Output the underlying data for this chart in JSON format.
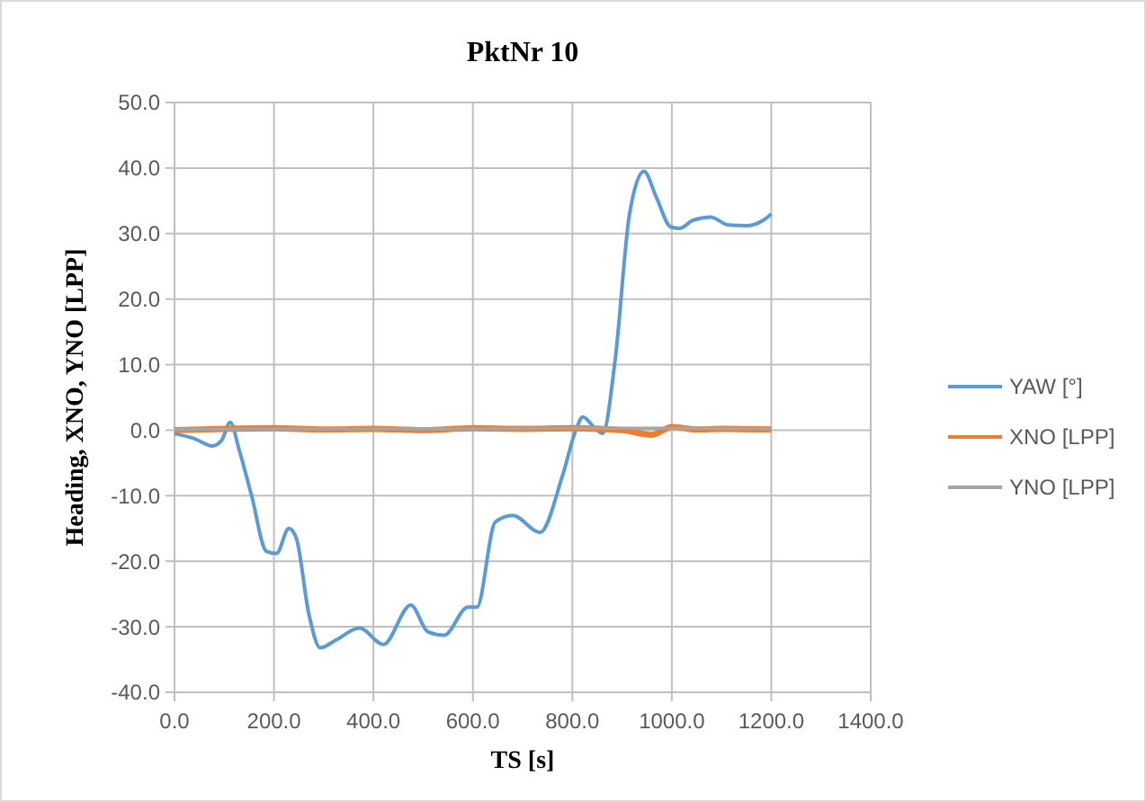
{
  "chart_data": {
    "type": "line",
    "title": "PktNr 10",
    "xlabel": "TS [s]",
    "ylabel": "Heading, XNO, YNO [LPP]",
    "xlim": [
      0,
      1400
    ],
    "xticks": [
      {
        "value": 0,
        "label": "0.0"
      },
      {
        "value": 200,
        "label": "200.0"
      },
      {
        "value": 400,
        "label": "400.0"
      },
      {
        "value": 600,
        "label": "600.0"
      },
      {
        "value": 800,
        "label": "800.0"
      },
      {
        "value": 1000,
        "label": "1000.0"
      },
      {
        "value": 1200,
        "label": "1200.0"
      },
      {
        "value": 1400,
        "label": "1400.0"
      }
    ],
    "ylim": [
      -40,
      50
    ],
    "yticks": [
      {
        "value": -40,
        "label": "-40.0"
      },
      {
        "value": -30,
        "label": "-30.0"
      },
      {
        "value": -20,
        "label": "-20.0"
      },
      {
        "value": -10,
        "label": "-10.0"
      },
      {
        "value": 0,
        "label": "0.0"
      },
      {
        "value": 10,
        "label": "10.0"
      },
      {
        "value": 20,
        "label": "20.0"
      },
      {
        "value": 30,
        "label": "30.0"
      },
      {
        "value": 40,
        "label": "40.0"
      },
      {
        "value": 50,
        "label": "50.0"
      }
    ],
    "grid": true,
    "legend": "right",
    "marker": "none",
    "line_style": "solid",
    "series": [
      {
        "name": "YAW [°]",
        "color": "#5b9bd5",
        "x": [
          0,
          40,
          76,
          95,
          112,
          130,
          155,
          185,
          205,
          230,
          245,
          270,
          293,
          325,
          372,
          420,
          475,
          510,
          542,
          590,
          608,
          645,
          680,
          735,
          780,
          807,
          821,
          843,
          861,
          886,
          915,
          944,
          969,
          998,
          1016,
          1042,
          1078,
          1114,
          1150,
          1183,
          1200
        ],
        "values": [
          -0.5,
          -1.3,
          -2.4,
          -1.5,
          1.2,
          -3,
          -10,
          -18.5,
          -18.8,
          -15,
          -16.5,
          -28,
          -33.2,
          -32,
          -30.2,
          -32.7,
          -26.7,
          -30.8,
          -31.3,
          -27,
          -27,
          -14,
          -13,
          -15.6,
          -7,
          0,
          2,
          0.5,
          -0.5,
          10.7,
          33,
          39.5,
          35.5,
          31,
          30.8,
          32,
          32.5,
          31.3,
          31.2,
          32,
          33
        ]
      },
      {
        "name": "XNO [LPP]",
        "color": "#ed7d31",
        "x": [
          0,
          100,
          200,
          300,
          400,
          500,
          600,
          700,
          800,
          900,
          960,
          1000,
          1050,
          1100,
          1200
        ],
        "values": [
          0,
          0.2,
          0.3,
          0.1,
          0.2,
          0,
          0.3,
          0.2,
          0.3,
          0,
          -0.7,
          0.5,
          0.1,
          0.2,
          0.1
        ]
      },
      {
        "name": "YNO [LPP]",
        "color": "#a5a5a5",
        "x": [
          0,
          200,
          400,
          600,
          800,
          1000,
          1200
        ],
        "values": [
          0.1,
          0.2,
          0.2,
          0.2,
          0.3,
          0.3,
          0.2
        ]
      }
    ]
  }
}
